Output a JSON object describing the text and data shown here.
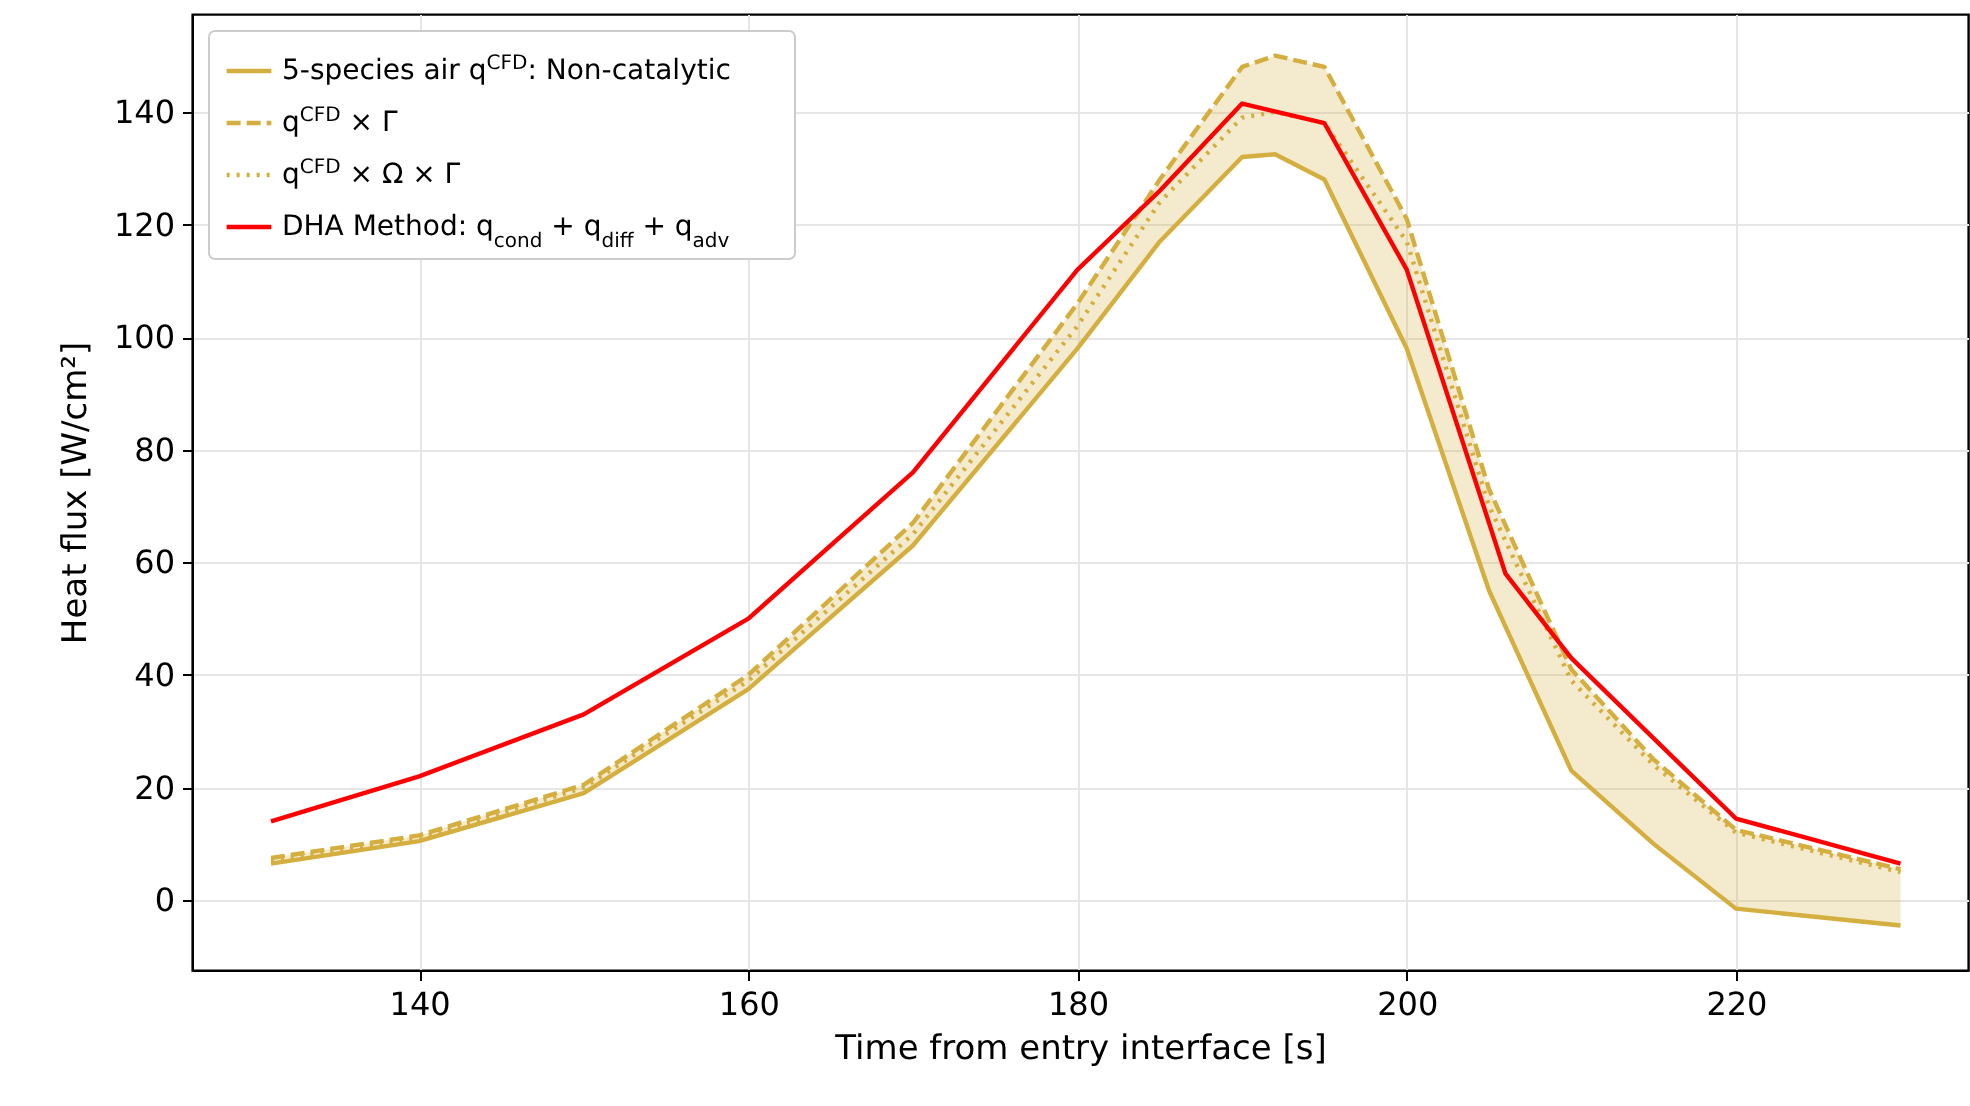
{
  "chart_data": {
    "type": "line",
    "xlabel": "Time from entry interface [s]",
    "ylabel": "Heat flux [W/cm²]",
    "xlim": [
      126.2,
      234.1
    ],
    "ylim": [
      -12.4,
      157.4
    ],
    "xticks": [
      140,
      160,
      180,
      200,
      220
    ],
    "yticks": [
      0,
      20,
      40,
      60,
      80,
      100,
      120,
      140
    ],
    "grid": true,
    "legend": "top left",
    "series": [
      {
        "name": "5-species air q$^{CFD}$: Non-catalytic",
        "color": "#d4ae3e",
        "line_style": "solid",
        "x": [
          131,
          140,
          150,
          160,
          170,
          180,
          185,
          190,
          192,
          195,
          200,
          205,
          210,
          215,
          220,
          230
        ],
        "values": [
          6.5,
          10.5,
          19,
          37.5,
          63,
          98,
          117,
          132,
          132.5,
          128,
          98,
          55,
          23,
          10,
          -1.5,
          -4.5
        ]
      },
      {
        "name": "q$^{CFD}$ × Γ",
        "color": "#d4ae3e",
        "line_style": "dashed",
        "x": [
          131,
          140,
          150,
          160,
          170,
          180,
          185,
          190,
          192,
          195,
          200,
          205,
          210,
          215,
          220,
          230
        ],
        "values": [
          7.5,
          11.5,
          20.5,
          40,
          67,
          106,
          128,
          148,
          150,
          148,
          121,
          73,
          41,
          25,
          12.5,
          5.5
        ],
        "lower": [
          6.5,
          10.5,
          19,
          37.5,
          63,
          98,
          117,
          132,
          132.5,
          128,
          98,
          55,
          23,
          10,
          -1.5,
          -4.5
        ],
        "upper": [
          7.5,
          11.5,
          20.5,
          40,
          67,
          106,
          128,
          148,
          150,
          148,
          121,
          73,
          41,
          25,
          12.5,
          5.5
        ]
      },
      {
        "name": "q$^{CFD}$ × Ω × Γ",
        "color": "#d4ae3e",
        "line_style": "dotted",
        "x": [
          131,
          140,
          150,
          160,
          170,
          180,
          185,
          190,
          192,
          195,
          200,
          205,
          210,
          215,
          220,
          230
        ],
        "values": [
          7,
          11,
          20,
          39,
          65,
          102,
          124,
          139,
          140,
          138,
          117,
          70,
          39,
          24,
          12,
          5
        ]
      },
      {
        "name": "DHA Method: q$_{cond}$ + q$_{diff}$ + q$_{adv}$",
        "color": "#ff0000",
        "line_style": "solid",
        "x": [
          131,
          140,
          150,
          160,
          170,
          180,
          185,
          190,
          195,
          200,
          206,
          210,
          220,
          230
        ],
        "values": [
          14,
          22,
          33,
          50,
          76,
          112,
          126,
          141.5,
          138,
          112,
          58,
          43,
          14.5,
          6.5
        ]
      }
    ]
  }
}
